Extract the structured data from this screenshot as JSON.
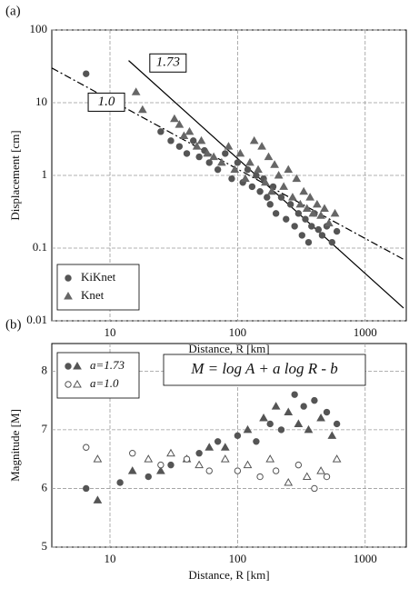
{
  "chart_data": [
    {
      "type": "scatter",
      "panel_label": "(a)",
      "x_label": "Distance, R  [km]",
      "y_label": "Displacement [cm]",
      "log_x": true,
      "log_y": true,
      "grid": true,
      "legend": "lower left",
      "xlim": [
        3.5,
        2100
      ],
      "ylim": [
        0.01,
        100
      ],
      "xticks": [
        10,
        100,
        1000
      ],
      "yticks": [
        0.01,
        0.1,
        1,
        10,
        100
      ],
      "series": [
        {
          "name": "KiKnet",
          "color": "#555555",
          "marker": "circle",
          "filled": true,
          "x": [
            6.5,
            25,
            30,
            35,
            40,
            45,
            50,
            55,
            60,
            70,
            80,
            90,
            100,
            110,
            120,
            130,
            140,
            150,
            160,
            170,
            180,
            190,
            200,
            220,
            240,
            260,
            280,
            300,
            320,
            340,
            360,
            380,
            400,
            430,
            460,
            500,
            550,
            600
          ],
          "values": [
            25,
            4,
            3,
            2.5,
            2,
            3,
            1.8,
            2.2,
            1.5,
            1.2,
            2,
            0.9,
            1.5,
            0.8,
            1.2,
            0.7,
            1,
            0.6,
            0.9,
            0.5,
            0.4,
            0.7,
            0.3,
            0.5,
            0.25,
            0.4,
            0.2,
            0.3,
            0.15,
            0.25,
            0.12,
            0.2,
            0.3,
            0.18,
            0.15,
            0.2,
            0.12,
            0.17
          ]
        },
        {
          "name": "Knet",
          "color": "#666666",
          "marker": "triangle",
          "filled": true,
          "x": [
            16,
            18,
            32,
            35,
            38,
            42,
            48,
            52,
            58,
            65,
            75,
            85,
            95,
            105,
            115,
            125,
            135,
            145,
            155,
            165,
            175,
            185,
            195,
            210,
            230,
            250,
            270,
            290,
            310,
            330,
            350,
            370,
            390,
            420,
            450,
            480,
            520,
            580
          ],
          "values": [
            14,
            8,
            6,
            5,
            3.5,
            4,
            2.5,
            3,
            2,
            1.8,
            1.5,
            2.5,
            1.2,
            2,
            0.9,
            1.5,
            3,
            1.2,
            2.5,
            0.8,
            1.8,
            0.6,
            1.4,
            1,
            0.7,
            1.2,
            0.5,
            0.9,
            0.4,
            0.6,
            0.35,
            0.5,
            0.3,
            0.4,
            0.28,
            0.35,
            0.22,
            0.3
          ]
        }
      ],
      "lines": [
        {
          "label": "1.73",
          "style": "solid",
          "x": [
            14,
            2000
          ],
          "values": [
            38,
            0.015
          ]
        },
        {
          "label": "1.0",
          "style": "dashed",
          "x": [
            3.5,
            2000
          ],
          "values": [
            30,
            0.07
          ]
        }
      ]
    },
    {
      "type": "scatter",
      "panel_label": "(b)",
      "x_label": "Distance, R  [km]",
      "y_label": "Magnitude [M]",
      "log_x": true,
      "log_y": false,
      "grid": true,
      "legend": "upper left",
      "annotation": "M = log A + a  log R - b",
      "xlim": [
        3.5,
        2100
      ],
      "ylim": [
        5,
        8.47
      ],
      "xticks": [
        10,
        100,
        1000
      ],
      "yticks": [
        5,
        6,
        7,
        8
      ],
      "series": [
        {
          "name": "a=1.73",
          "color": "#555555",
          "markers": [
            "circle",
            "triangle"
          ],
          "filled": true,
          "x": [
            6.5,
            8,
            12,
            15,
            20,
            25,
            30,
            40,
            50,
            60,
            70,
            80,
            100,
            120,
            140,
            160,
            180,
            200,
            220,
            250,
            280,
            300,
            330,
            360,
            400,
            450,
            500,
            550,
            600
          ],
          "values": [
            6.0,
            5.8,
            6.1,
            6.3,
            6.2,
            6.3,
            6.4,
            6.5,
            6.6,
            6.7,
            6.8,
            6.7,
            6.9,
            7.0,
            6.8,
            7.2,
            7.1,
            7.4,
            7.0,
            7.3,
            7.6,
            7.1,
            7.4,
            7.0,
            7.5,
            7.2,
            7.3,
            6.9,
            7.1
          ]
        },
        {
          "name": "a=1.0",
          "color": "#555555",
          "markers": [
            "circle",
            "triangle"
          ],
          "filled": false,
          "x": [
            6.5,
            8,
            15,
            20,
            25,
            30,
            40,
            50,
            60,
            80,
            100,
            120,
            150,
            180,
            200,
            250,
            300,
            350,
            400,
            450,
            500,
            600
          ],
          "values": [
            6.7,
            6.5,
            6.6,
            6.5,
            6.4,
            6.6,
            6.5,
            6.4,
            6.3,
            6.5,
            6.3,
            6.4,
            6.2,
            6.5,
            6.3,
            6.1,
            6.4,
            6.2,
            6.0,
            6.3,
            6.2,
            6.5
          ]
        }
      ]
    }
  ]
}
